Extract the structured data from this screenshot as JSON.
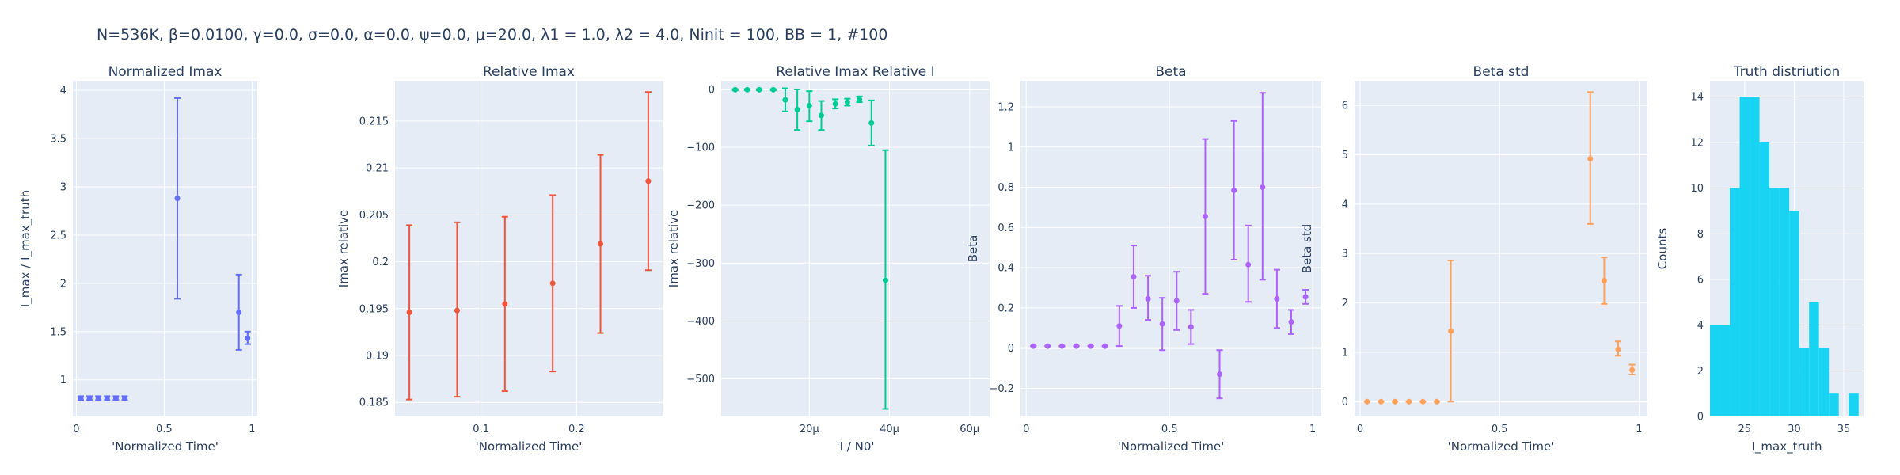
{
  "figure": {
    "title": "N=536K, β=0.0100, γ=0.0, σ=0.0,  α=0.0, ψ=0.0, μ=20.0, λ1 = 1.0, λ2 = 4.0, Ninit = 100, BB = 1, #100"
  },
  "chart_data": [
    {
      "type": "scatter",
      "title": "Normalized Imax",
      "xlabel": "'Normalized Time'",
      "ylabel": "I_max / I_max_truth",
      "xlim": [
        -0.02,
        1.03
      ],
      "ylim": [
        0.62,
        4.1
      ],
      "xticks": [
        0,
        0.5,
        1
      ],
      "xtick_labels": [
        "0",
        "0.5",
        "1"
      ],
      "yticks": [
        1,
        1.5,
        2,
        2.5,
        3,
        3.5,
        4
      ],
      "ytick_labels": [
        "1",
        "1.5",
        "2",
        "2.5",
        "3",
        "3.5",
        "4"
      ],
      "color": "#636efa",
      "points": [
        {
          "x": 0.025,
          "y": 0.81,
          "lo": 0.79,
          "hi": 0.83
        },
        {
          "x": 0.075,
          "y": 0.81,
          "lo": 0.79,
          "hi": 0.83
        },
        {
          "x": 0.125,
          "y": 0.81,
          "lo": 0.79,
          "hi": 0.83
        },
        {
          "x": 0.175,
          "y": 0.81,
          "lo": 0.79,
          "hi": 0.83
        },
        {
          "x": 0.225,
          "y": 0.81,
          "lo": 0.79,
          "hi": 0.83
        },
        {
          "x": 0.275,
          "y": 0.81,
          "lo": 0.79,
          "hi": 0.83
        },
        {
          "x": 0.575,
          "y": 2.88,
          "lo": 1.84,
          "hi": 3.92
        },
        {
          "x": 0.925,
          "y": 1.7,
          "lo": 1.31,
          "hi": 2.09
        },
        {
          "x": 0.975,
          "y": 1.43,
          "lo": 1.37,
          "hi": 1.5
        }
      ]
    },
    {
      "type": "scatter",
      "title": "Relative Imax",
      "xlabel": "'Normalized Time'",
      "ylabel": "Imax relative",
      "xlim": [
        0.01,
        0.29
      ],
      "ylim": [
        0.1835,
        0.2193
      ],
      "xticks": [
        0.1,
        0.2
      ],
      "xtick_labels": [
        "0.1",
        "0.2"
      ],
      "yticks": [
        0.185,
        0.19,
        0.195,
        0.2,
        0.205,
        0.21,
        0.215
      ],
      "ytick_labels": [
        "0.185",
        "0.19",
        "0.195",
        "0.2",
        "0.205",
        "0.21",
        "0.215"
      ],
      "color": "#ef553b",
      "points": [
        {
          "x": 0.025,
          "y": 0.1946,
          "lo": 0.1853,
          "hi": 0.2039
        },
        {
          "x": 0.075,
          "y": 0.1948,
          "lo": 0.1856,
          "hi": 0.2042
        },
        {
          "x": 0.125,
          "y": 0.1955,
          "lo": 0.1862,
          "hi": 0.2048
        },
        {
          "x": 0.175,
          "y": 0.1977,
          "lo": 0.1883,
          "hi": 0.2071
        },
        {
          "x": 0.225,
          "y": 0.2019,
          "lo": 0.1924,
          "hi": 0.2114
        },
        {
          "x": 0.275,
          "y": 0.2086,
          "lo": 0.1991,
          "hi": 0.2181
        }
      ]
    },
    {
      "type": "scatter",
      "title": "Relative Imax Relative I",
      "xlabel": "'I / N0'",
      "ylabel": "Imax relative",
      "xlim": [
        -2e-06,
        6.5e-05
      ],
      "ylim": [
        -565,
        15
      ],
      "xticks": [
        2e-05,
        4e-05,
        6e-05
      ],
      "xtick_labels": [
        "20μ",
        "40μ",
        "60μ"
      ],
      "yticks": [
        0,
        -100,
        -200,
        -300,
        -400,
        -500
      ],
      "ytick_labels": [
        "0",
        "−100",
        "−200",
        "−300",
        "−400",
        "−500"
      ],
      "color": "#00cc96",
      "points": [
        {
          "x": 1.5e-06,
          "y": -0.5,
          "lo": -1.5,
          "hi": 0.5
        },
        {
          "x": 4.5e-06,
          "y": -0.5,
          "lo": -1.5,
          "hi": 0.5
        },
        {
          "x": 7.5e-06,
          "y": -0.5,
          "lo": -1.5,
          "hi": 0.5
        },
        {
          "x": 1.1e-05,
          "y": -0.5,
          "lo": -1.5,
          "hi": 0.5
        },
        {
          "x": 1.4e-05,
          "y": -18,
          "lo": -38,
          "hi": 2
        },
        {
          "x": 1.7e-05,
          "y": -35,
          "lo": -70,
          "hi": 0
        },
        {
          "x": 2e-05,
          "y": -28,
          "lo": -55,
          "hi": -3
        },
        {
          "x": 2.3e-05,
          "y": -45,
          "lo": -70,
          "hi": -20
        },
        {
          "x": 2.65e-05,
          "y": -25,
          "lo": -33,
          "hi": -17
        },
        {
          "x": 2.95e-05,
          "y": -22,
          "lo": -28,
          "hi": -16
        },
        {
          "x": 3.25e-05,
          "y": -17,
          "lo": -22,
          "hi": -12
        },
        {
          "x": 3.55e-05,
          "y": -58,
          "lo": -97,
          "hi": -19
        },
        {
          "x": 3.9e-05,
          "y": -330,
          "lo": -552,
          "hi": -105
        }
      ]
    },
    {
      "type": "scatter",
      "title": "Beta",
      "xlabel": "'Normalized Time'",
      "ylabel": "Beta",
      "xlim": [
        -0.02,
        1.03
      ],
      "ylim": [
        -0.34,
        1.33
      ],
      "xticks": [
        0,
        0.5,
        1
      ],
      "xtick_labels": [
        "0",
        "0.5",
        "1"
      ],
      "yticks": [
        -0.2,
        0,
        0.2,
        0.4,
        0.6,
        0.8,
        1,
        1.2
      ],
      "ytick_labels": [
        "−0.2",
        "0",
        "0.2",
        "0.4",
        "0.6",
        "0.8",
        "1",
        "1.2"
      ],
      "color": "#ab63fa",
      "points": [
        {
          "x": 0.025,
          "y": 0.01,
          "lo": 0.01,
          "hi": 0.01
        },
        {
          "x": 0.075,
          "y": 0.01,
          "lo": 0.01,
          "hi": 0.01
        },
        {
          "x": 0.125,
          "y": 0.01,
          "lo": 0.01,
          "hi": 0.01
        },
        {
          "x": 0.175,
          "y": 0.01,
          "lo": 0.01,
          "hi": 0.01
        },
        {
          "x": 0.225,
          "y": 0.01,
          "lo": 0.01,
          "hi": 0.01
        },
        {
          "x": 0.275,
          "y": 0.01,
          "lo": 0.01,
          "hi": 0.01
        },
        {
          "x": 0.325,
          "y": 0.11,
          "lo": 0.01,
          "hi": 0.21
        },
        {
          "x": 0.375,
          "y": 0.355,
          "lo": 0.2,
          "hi": 0.51
        },
        {
          "x": 0.425,
          "y": 0.245,
          "lo": 0.14,
          "hi": 0.36
        },
        {
          "x": 0.475,
          "y": 0.12,
          "lo": -0.01,
          "hi": 0.25
        },
        {
          "x": 0.525,
          "y": 0.235,
          "lo": 0.09,
          "hi": 0.38
        },
        {
          "x": 0.575,
          "y": 0.105,
          "lo": 0.02,
          "hi": 0.19
        },
        {
          "x": 0.625,
          "y": 0.655,
          "lo": 0.27,
          "hi": 1.04
        },
        {
          "x": 0.675,
          "y": -0.13,
          "lo": -0.25,
          "hi": -0.01
        },
        {
          "x": 0.725,
          "y": 0.785,
          "lo": 0.44,
          "hi": 1.13
        },
        {
          "x": 0.775,
          "y": 0.415,
          "lo": 0.23,
          "hi": 0.61
        },
        {
          "x": 0.825,
          "y": 0.8,
          "lo": 0.34,
          "hi": 1.27
        },
        {
          "x": 0.875,
          "y": 0.245,
          "lo": 0.1,
          "hi": 0.39
        },
        {
          "x": 0.925,
          "y": 0.13,
          "lo": 0.07,
          "hi": 0.19
        },
        {
          "x": 0.975,
          "y": 0.255,
          "lo": 0.22,
          "hi": 0.29
        }
      ]
    },
    {
      "type": "scatter",
      "title": "Beta std",
      "xlabel": "'Normalized Time'",
      "ylabel": "Beta std",
      "xlim": [
        -0.02,
        1.03
      ],
      "ylim": [
        -0.3,
        6.5
      ],
      "xticks": [
        0,
        0.5,
        1
      ],
      "xtick_labels": [
        "0",
        "0.5",
        "1"
      ],
      "yticks": [
        0,
        1,
        2,
        3,
        4,
        5,
        6
      ],
      "ytick_labels": [
        "0",
        "1",
        "2",
        "3",
        "4",
        "5",
        "6"
      ],
      "color": "#ffa15a",
      "points": [
        {
          "x": 0.025,
          "y": 0.0,
          "lo": 0.0,
          "hi": 0.0
        },
        {
          "x": 0.075,
          "y": 0.0,
          "lo": 0.0,
          "hi": 0.0
        },
        {
          "x": 0.125,
          "y": 0.0,
          "lo": 0.0,
          "hi": 0.0
        },
        {
          "x": 0.175,
          "y": 0.0,
          "lo": 0.0,
          "hi": 0.0
        },
        {
          "x": 0.225,
          "y": 0.0,
          "lo": 0.0,
          "hi": 0.0
        },
        {
          "x": 0.275,
          "y": 0.0,
          "lo": 0.0,
          "hi": 0.0
        },
        {
          "x": 0.325,
          "y": 1.43,
          "lo": 0.0,
          "hi": 2.86
        },
        {
          "x": 0.825,
          "y": 4.92,
          "lo": 3.6,
          "hi": 6.27
        },
        {
          "x": 0.875,
          "y": 2.45,
          "lo": 1.98,
          "hi": 2.92
        },
        {
          "x": 0.925,
          "y": 1.06,
          "lo": 0.93,
          "hi": 1.22
        },
        {
          "x": 0.975,
          "y": 0.64,
          "lo": 0.55,
          "hi": 0.75
        }
      ]
    },
    {
      "type": "bar",
      "title": "Truth distriution",
      "xlabel": "I_max_truth",
      "ylabel": "Counts",
      "xlim": [
        21.5,
        37
      ],
      "ylim": [
        0,
        14.7
      ],
      "xticks": [
        25,
        30,
        35
      ],
      "xtick_labels": [
        "25",
        "30",
        "35"
      ],
      "yticks": [
        0,
        2,
        4,
        6,
        8,
        10,
        12,
        14
      ],
      "ytick_labels": [
        "0",
        "2",
        "4",
        "6",
        "8",
        "10",
        "12",
        "14"
      ],
      "color": "#19d3f3",
      "bins": [
        {
          "x0": 21.5,
          "x1": 22.5,
          "count": 4
        },
        {
          "x0": 22.5,
          "x1": 23.5,
          "count": 4
        },
        {
          "x0": 23.5,
          "x1": 24.5,
          "count": 10
        },
        {
          "x0": 24.5,
          "x1": 25.5,
          "count": 14
        },
        {
          "x0": 25.5,
          "x1": 26.5,
          "count": 14
        },
        {
          "x0": 26.5,
          "x1": 27.5,
          "count": 12
        },
        {
          "x0": 27.5,
          "x1": 28.5,
          "count": 10
        },
        {
          "x0": 28.5,
          "x1": 29.5,
          "count": 10
        },
        {
          "x0": 29.5,
          "x1": 30.5,
          "count": 9
        },
        {
          "x0": 30.5,
          "x1": 31.5,
          "count": 3
        },
        {
          "x0": 31.5,
          "x1": 32.5,
          "count": 5
        },
        {
          "x0": 32.5,
          "x1": 33.5,
          "count": 3
        },
        {
          "x0": 33.5,
          "x1": 34.5,
          "count": 1
        },
        {
          "x0": 34.5,
          "x1": 35.5,
          "count": 0
        },
        {
          "x0": 35.5,
          "x1": 36.5,
          "count": 1
        }
      ]
    }
  ]
}
